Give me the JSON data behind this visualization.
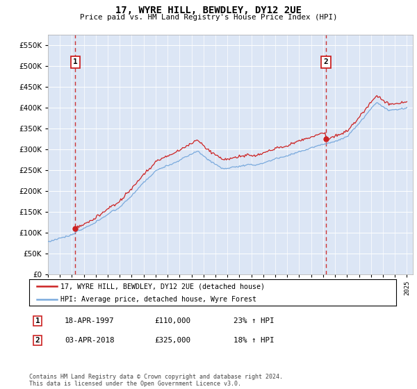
{
  "title": "17, WYRE HILL, BEWDLEY, DY12 2UE",
  "subtitle": "Price paid vs. HM Land Registry's House Price Index (HPI)",
  "legend_line1": "17, WYRE HILL, BEWDLEY, DY12 2UE (detached house)",
  "legend_line2": "HPI: Average price, detached house, Wyre Forest",
  "annotation1_label": "1",
  "annotation1_date": "18-APR-1997",
  "annotation1_price": "£110,000",
  "annotation1_hpi": "23% ↑ HPI",
  "annotation1_year": 1997.29,
  "annotation1_value": 110000,
  "annotation2_label": "2",
  "annotation2_date": "03-APR-2018",
  "annotation2_price": "£325,000",
  "annotation2_hpi": "18% ↑ HPI",
  "annotation2_year": 2018.25,
  "annotation2_value": 325000,
  "plot_bg_color": "#dce6f5",
  "hpi_line_color": "#7aaadd",
  "price_line_color": "#cc2222",
  "dashed_line_color": "#cc3333",
  "ylim": [
    0,
    575000
  ],
  "yticks": [
    0,
    50000,
    100000,
    150000,
    200000,
    250000,
    300000,
    350000,
    400000,
    450000,
    500000,
    550000
  ],
  "xmin": 1995,
  "xmax": 2025.5,
  "footer": "Contains HM Land Registry data © Crown copyright and database right 2024.\nThis data is licensed under the Open Government Licence v3.0."
}
